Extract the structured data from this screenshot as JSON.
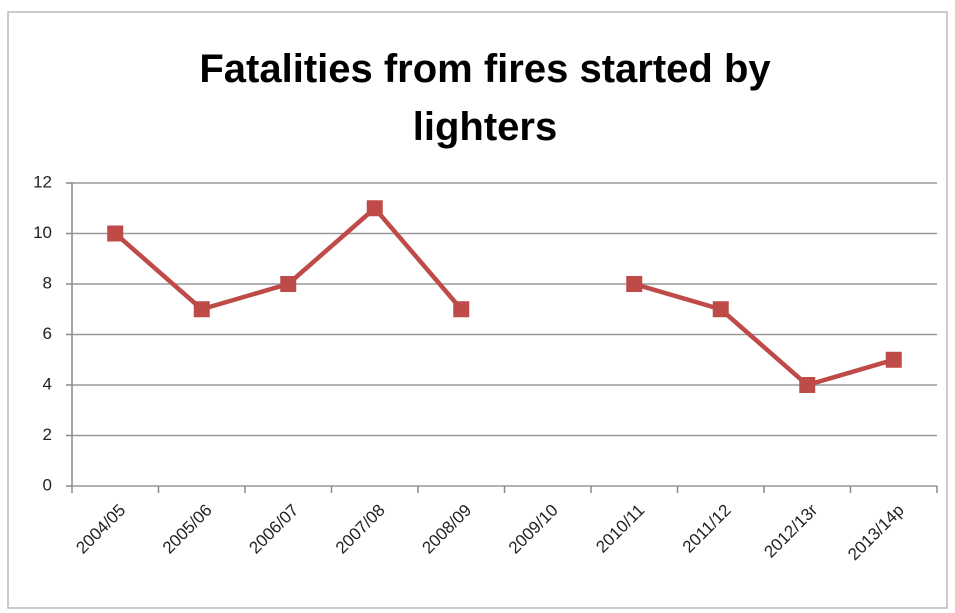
{
  "chart_data": {
    "type": "line",
    "title": "Fatalities from fires started by lighters",
    "categories": [
      "2004/05",
      "2005/06",
      "2006/07",
      "2007/08",
      "2008/09",
      "2009/10",
      "2010/11",
      "2011/12",
      "2012/13r",
      "2013/14p"
    ],
    "values": [
      10,
      7,
      8,
      11,
      7,
      null,
      8,
      7,
      4,
      5
    ],
    "color": "#be4b48",
    "ylim": [
      0,
      12
    ],
    "yticks": [
      0,
      2,
      4,
      6,
      8,
      10,
      12
    ],
    "grid": true
  }
}
